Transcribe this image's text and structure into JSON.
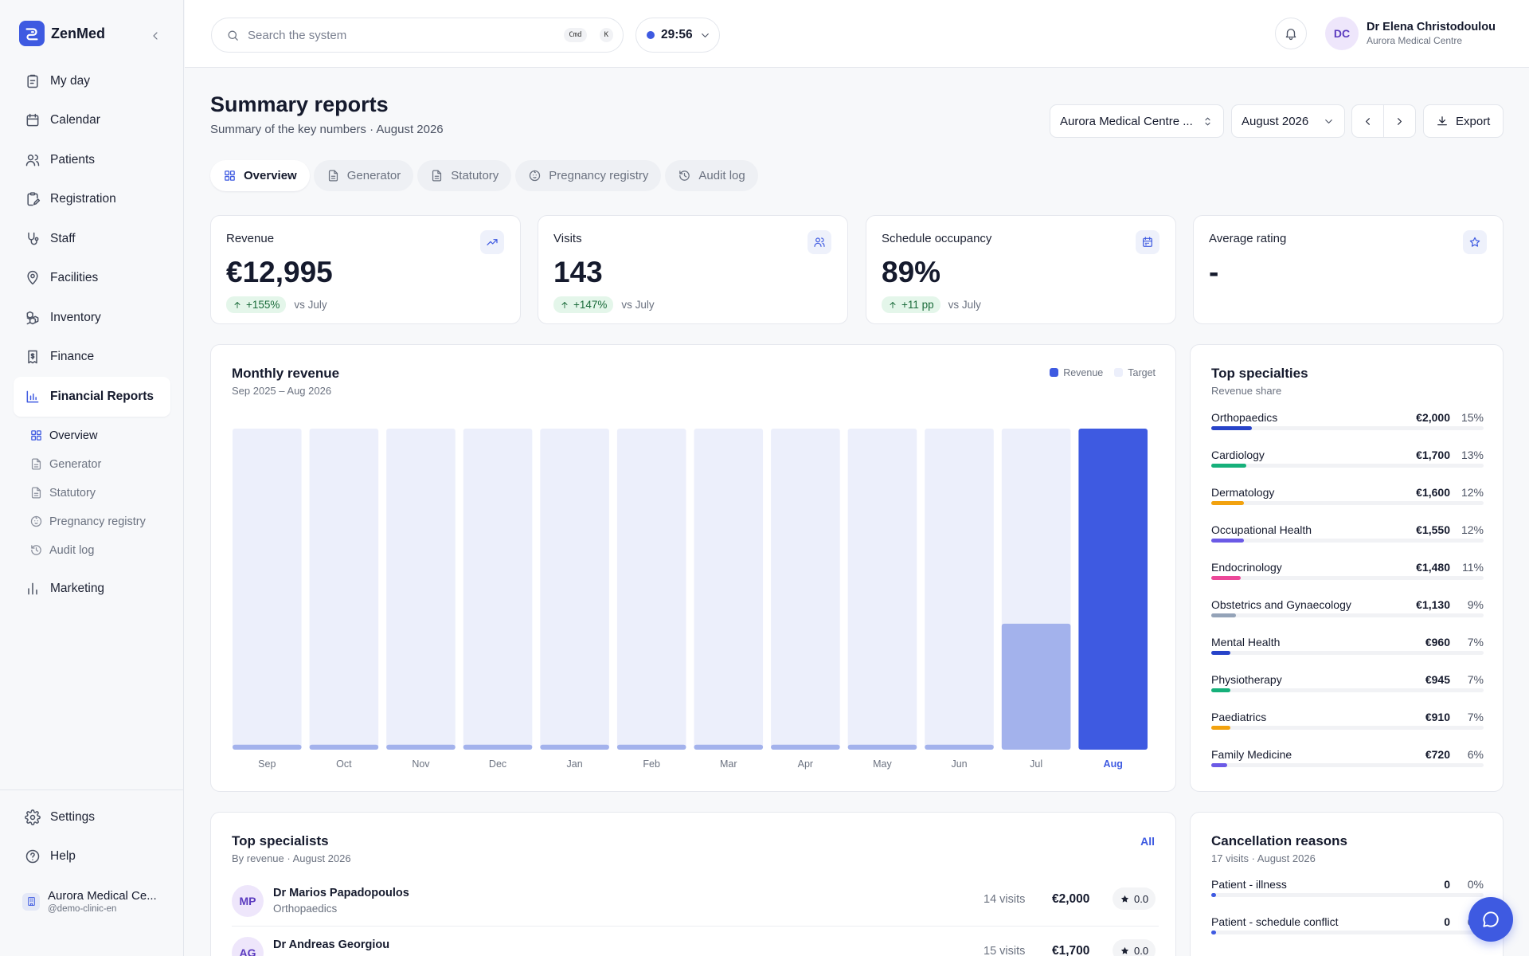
{
  "brand": {
    "name": "ZenMed"
  },
  "sidebar": {
    "items": [
      {
        "label": "My day",
        "icon": "clipboard-icon"
      },
      {
        "label": "Calendar",
        "icon": "calendar-icon"
      },
      {
        "label": "Patients",
        "icon": "users-icon"
      },
      {
        "label": "Registration",
        "icon": "clipboard-edit-icon"
      },
      {
        "label": "Staff",
        "icon": "stethoscope-icon"
      },
      {
        "label": "Facilities",
        "icon": "map-pin-icon"
      },
      {
        "label": "Inventory",
        "icon": "boxes-icon"
      },
      {
        "label": "Finance",
        "icon": "receipt-icon"
      },
      {
        "label": "Financial Reports",
        "icon": "bar-chart-icon"
      }
    ],
    "sub_items": [
      {
        "label": "Overview",
        "icon": "grid-icon"
      },
      {
        "label": "Generator",
        "icon": "file-icon"
      },
      {
        "label": "Statutory",
        "icon": "file-icon"
      },
      {
        "label": "Pregnancy registry",
        "icon": "baby-icon"
      },
      {
        "label": "Audit log",
        "icon": "history-icon"
      }
    ],
    "marketing": "Marketing",
    "settings": "Settings",
    "help": "Help",
    "org_name": "Aurora Medical Ce...",
    "org_handle": "@demo-clinic-en"
  },
  "header": {
    "search_placeholder": "Search the system",
    "kbd1": "Cmd",
    "kbd2": "K",
    "timer": "29:56",
    "user_initials": "DC",
    "user_name": "Dr Elena Christodoulou",
    "user_org": "Aurora Medical Centre"
  },
  "page": {
    "title": "Summary reports",
    "subtitle": "Summary of the key numbers · August 2026",
    "clinic_select": "Aurora Medical Centre ...",
    "month_select": "August 2026",
    "export": "Export",
    "tabs": [
      {
        "label": "Overview",
        "icon": "grid-icon"
      },
      {
        "label": "Generator",
        "icon": "file-icon"
      },
      {
        "label": "Statutory",
        "icon": "file-icon"
      },
      {
        "label": "Pregnancy registry",
        "icon": "baby-icon"
      },
      {
        "label": "Audit log",
        "icon": "history-icon"
      }
    ]
  },
  "kpis": [
    {
      "label": "Revenue",
      "value": "€12,995",
      "delta": "+155%",
      "compare": "vs July",
      "icon": "trending-up-icon"
    },
    {
      "label": "Visits",
      "value": "143",
      "delta": "+147%",
      "compare": "vs July",
      "icon": "users-icon"
    },
    {
      "label": "Schedule occupancy",
      "value": "89%",
      "delta": "+11 pp",
      "compare": "vs July",
      "icon": "calendar-icon"
    },
    {
      "label": "Average rating",
      "value": "-",
      "delta": "",
      "compare": "",
      "icon": "star-icon"
    }
  ],
  "revenue_card": {
    "title": "Monthly revenue",
    "subtitle": "Sep 2025 – Aug 2026",
    "legend_revenue": "Revenue",
    "legend_target": "Target"
  },
  "chart_data": {
    "type": "bar",
    "categories": [
      "Sep",
      "Oct",
      "Nov",
      "Dec",
      "Jan",
      "Feb",
      "Mar",
      "Apr",
      "May",
      "Jun",
      "Jul",
      "Aug"
    ],
    "series": [
      {
        "name": "Revenue",
        "values": [
          200,
          200,
          200,
          200,
          200,
          200,
          200,
          200,
          200,
          200,
          5100,
          12995
        ]
      },
      {
        "name": "Target",
        "values": [
          12995,
          12995,
          12995,
          12995,
          12995,
          12995,
          12995,
          12995,
          12995,
          12995,
          12995,
          12995
        ]
      }
    ],
    "ylim": [
      0,
      12995
    ],
    "grid": false,
    "legend": "top-right",
    "colors": {
      "revenue": "#3e5ae1",
      "revenue_past": "#a3b2ec",
      "target": "#eceffb"
    }
  },
  "specialties": {
    "title": "Top specialties",
    "subtitle": "Revenue share",
    "rows": [
      {
        "name": "Orthopaedics",
        "amount": "€2,000",
        "pct": "15%",
        "share": 0.15,
        "color": "#2743c9"
      },
      {
        "name": "Cardiology",
        "amount": "€1,700",
        "pct": "13%",
        "share": 0.13,
        "color": "#16b07a"
      },
      {
        "name": "Dermatology",
        "amount": "€1,600",
        "pct": "12%",
        "share": 0.12,
        "color": "#f2a20f"
      },
      {
        "name": "Occupational Health",
        "amount": "€1,550",
        "pct": "12%",
        "share": 0.12,
        "color": "#6b5ae6"
      },
      {
        "name": "Endocrinology",
        "amount": "€1,480",
        "pct": "11%",
        "share": 0.11,
        "color": "#ec4899"
      },
      {
        "name": "Obstetrics and Gynaecology",
        "amount": "€1,130",
        "pct": "9%",
        "share": 0.09,
        "color": "#94a3b8"
      },
      {
        "name": "Mental Health",
        "amount": "€960",
        "pct": "7%",
        "share": 0.07,
        "color": "#2743c9"
      },
      {
        "name": "Physiotherapy",
        "amount": "€945",
        "pct": "7%",
        "share": 0.07,
        "color": "#16b07a"
      },
      {
        "name": "Paediatrics",
        "amount": "€910",
        "pct": "7%",
        "share": 0.07,
        "color": "#f2a20f"
      },
      {
        "name": "Family Medicine",
        "amount": "€720",
        "pct": "6%",
        "share": 0.06,
        "color": "#6b5ae6"
      }
    ]
  },
  "specialists": {
    "title": "Top specialists",
    "subtitle": "By revenue · August 2026",
    "all_link": "All",
    "rows": [
      {
        "initials": "MP",
        "name": "Dr Marios Papadopoulos",
        "specialty": "Orthopaedics",
        "visits": "14 visits",
        "revenue": "€2,000",
        "rating": "0.0"
      },
      {
        "initials": "AG",
        "name": "Dr Andreas Georgiou",
        "specialty": "",
        "visits": "15 visits",
        "revenue": "€1,700",
        "rating": "0.0"
      }
    ]
  },
  "cancellations": {
    "title": "Cancellation reasons",
    "subtitle": "17 visits · August 2026",
    "rows": [
      {
        "name": "Patient - illness",
        "count": "0",
        "pct": "0%"
      },
      {
        "name": "Patient - schedule conflict",
        "count": "0",
        "pct": "0%"
      }
    ]
  }
}
